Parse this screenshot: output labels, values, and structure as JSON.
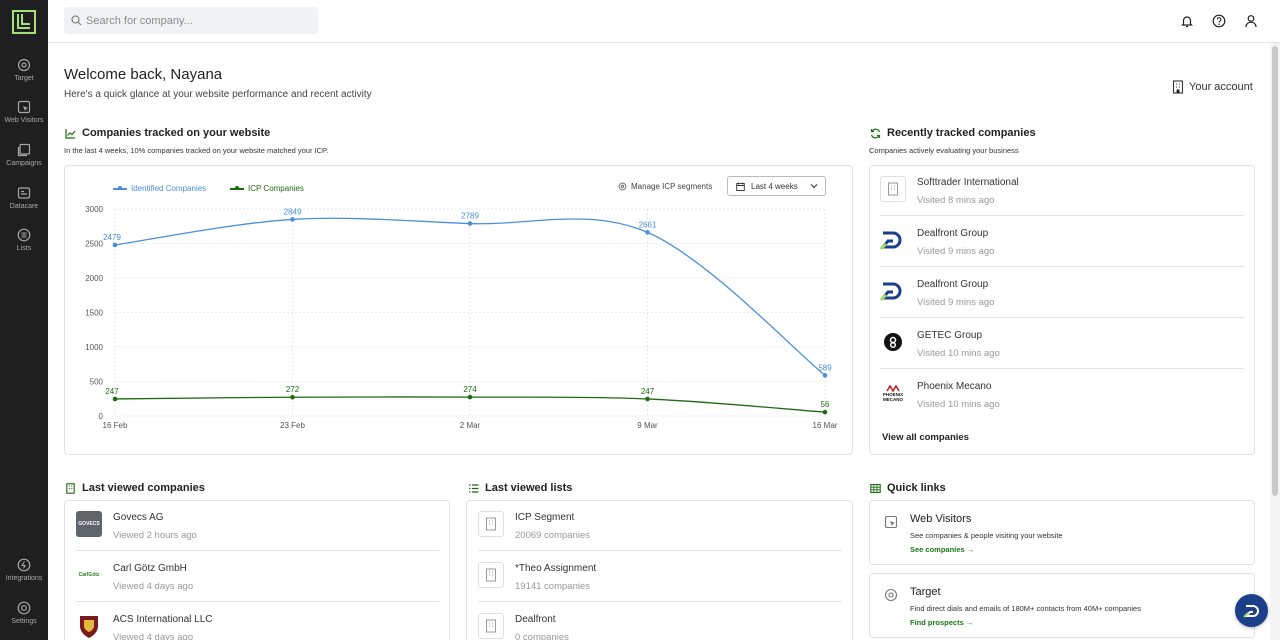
{
  "sidebar": {
    "items": [
      {
        "label": "Target",
        "icon": "target-icon"
      },
      {
        "label": "Web Visitors",
        "icon": "web-visitors-icon"
      },
      {
        "label": "Campaigns",
        "icon": "campaigns-icon"
      },
      {
        "label": "Datacare",
        "icon": "datacare-icon"
      },
      {
        "label": "Lists",
        "icon": "lists-icon"
      }
    ],
    "bottom": [
      {
        "label": "Integrations",
        "icon": "integrations-icon"
      },
      {
        "label": "Settings",
        "icon": "settings-icon"
      }
    ]
  },
  "search": {
    "placeholder": "Search for company..."
  },
  "header": {
    "welcome": "Welcome back, Nayana",
    "subtitle": "Here's a quick glance at your website performance and recent activity",
    "account_label": "Your account"
  },
  "tracked": {
    "title": "Companies tracked on your website",
    "subtitle": "In the last 4 weeks, 10% companies tracked on your website matched your ICP.",
    "manage_label": "Manage ICP segments",
    "range_label": "Last 4 weeks"
  },
  "chart_data": {
    "type": "line",
    "x": [
      "16 Feb",
      "23 Feb",
      "2 Mar",
      "9 Mar",
      "16 Mar"
    ],
    "series": [
      {
        "name": "Identified Companies",
        "color": "#4a90d9",
        "values": [
          2479,
          2849,
          2789,
          2661,
          589
        ]
      },
      {
        "name": "ICP Companies",
        "color": "#1e6b12",
        "values": [
          247,
          272,
          274,
          247,
          56
        ]
      }
    ],
    "yticks": [
      0,
      500,
      1000,
      1500,
      2000,
      2500,
      3000
    ],
    "ylim": [
      0,
      3000
    ],
    "grid": true,
    "legend": "top-left"
  },
  "recent": {
    "title": "Recently tracked companies",
    "subtitle": "Companies actively evaluating your business",
    "items": [
      {
        "name": "Softtrader International",
        "time": "Visited 8 mins ago",
        "logo": "building-icon"
      },
      {
        "name": "Dealfront Group",
        "time": "Visited 9 mins ago",
        "logo": "dealfront-logo"
      },
      {
        "name": "Dealfront Group",
        "time": "Visited 9 mins ago",
        "logo": "dealfront-logo"
      },
      {
        "name": "GETEC Group",
        "time": "Visited 10 mins ago",
        "logo": "getec-logo"
      },
      {
        "name": "Phoenix Mecano",
        "time": "Visited 10 mins ago",
        "logo": "phoenix-logo",
        "logo_text": "PHOENIX MECANO"
      }
    ],
    "view_all": "View all companies"
  },
  "last_companies": {
    "title": "Last viewed companies",
    "items": [
      {
        "name": "Govecs AG",
        "time": "Viewed 2 hours ago",
        "logo_text": "GOVECS"
      },
      {
        "name": "Carl Götz GmbH",
        "time": "Viewed 4 days ago",
        "logo_text": "CarlGötz"
      },
      {
        "name": "ACS International LLC",
        "time": "Viewed 4 days ago",
        "logo_text": ""
      }
    ]
  },
  "last_lists": {
    "title": "Last viewed lists",
    "items": [
      {
        "name": "ICP Segment",
        "count": "20069 companies"
      },
      {
        "name": "*Theo Assignment",
        "count": "19141 companies"
      },
      {
        "name": "Dealfront",
        "count": "0 companies"
      }
    ]
  },
  "quick_links": {
    "title": "Quick links",
    "items": [
      {
        "title": "Web Visitors",
        "desc": "See companies & people visiting your website",
        "link": "See companies →"
      },
      {
        "title": "Target",
        "desc": "Find direct dials and emails of 180M+ contacts from 40M+ companies",
        "link": "Find prospects →"
      }
    ]
  },
  "colors": {
    "accent": "#1e6b12",
    "brand_green": "#9be15d",
    "identified": "#4a90d9"
  }
}
